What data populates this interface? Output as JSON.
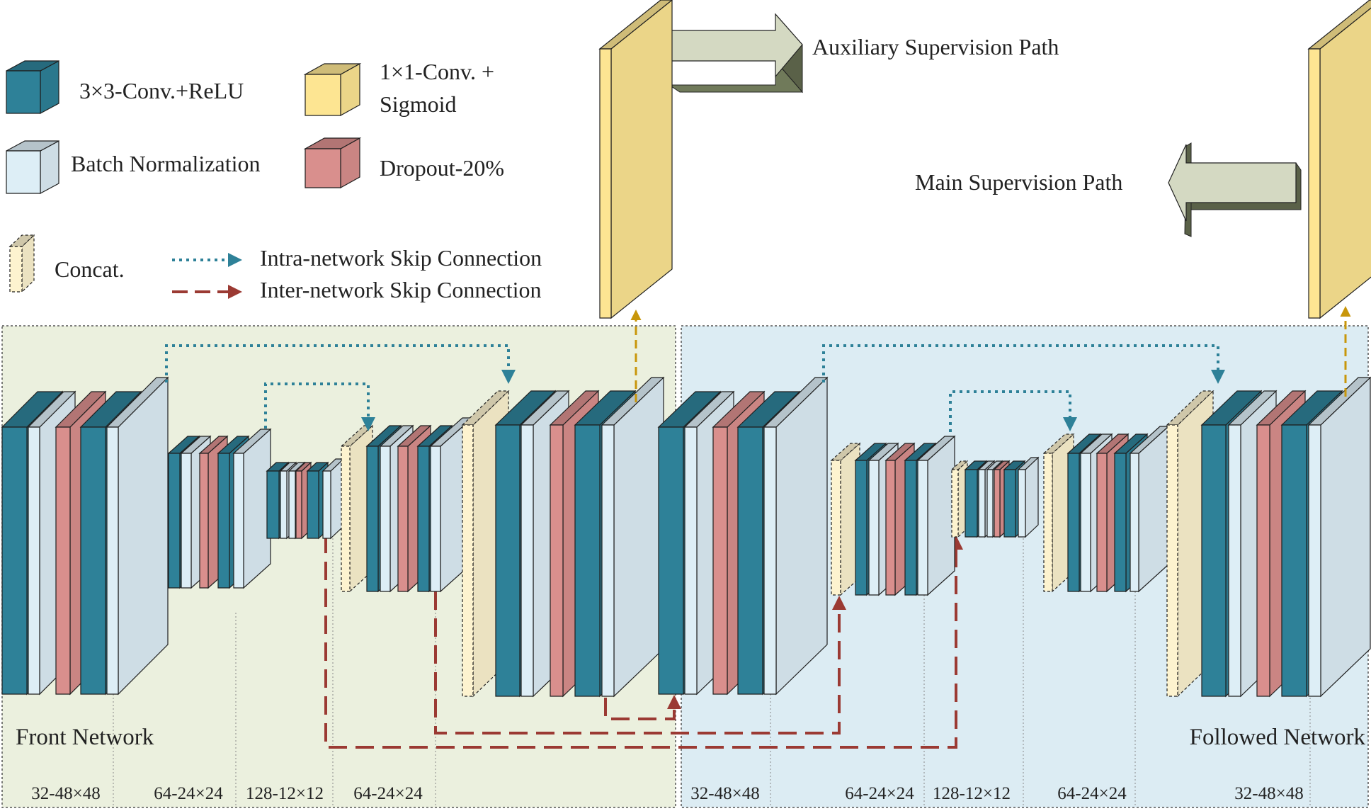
{
  "colors": {
    "conv": "#2e8198",
    "batchnorm": "#ddeef6",
    "dropout": "#d98f8d",
    "conv1x1": "#fde592",
    "concat": "#fdf3cf",
    "front_bg": "#ebf0de",
    "followed_bg": "#dcecf3",
    "intra_skip": "#2e8198",
    "inter_skip": "#9b3a33",
    "supervision_arrow": "#d4d9c2",
    "output_arrow": "#c8960a"
  },
  "legend": {
    "conv_relu": "3×3-Conv.+ReLU",
    "conv1x1_line1": "1×1-Conv. +",
    "conv1x1_line2": "Sigmoid",
    "batch_norm": "Batch Normalization",
    "dropout": "Dropout-20%",
    "concat": "Concat.",
    "intra_skip": "Intra-network Skip Connection",
    "inter_skip": "Inter-network Skip Connection"
  },
  "paths": {
    "auxiliary": "Auxiliary Supervision Path",
    "main": "Main Supervision Path"
  },
  "panels": {
    "front": "Front Network",
    "followed": "Followed Network"
  },
  "dims": {
    "front": [
      "32-48×48",
      "64-24×24",
      "128-12×12",
      "64-24×24"
    ],
    "followed": [
      "32-48×48",
      "64-24×24",
      "128-12×12",
      "64-24×24",
      "32-48×48"
    ]
  }
}
